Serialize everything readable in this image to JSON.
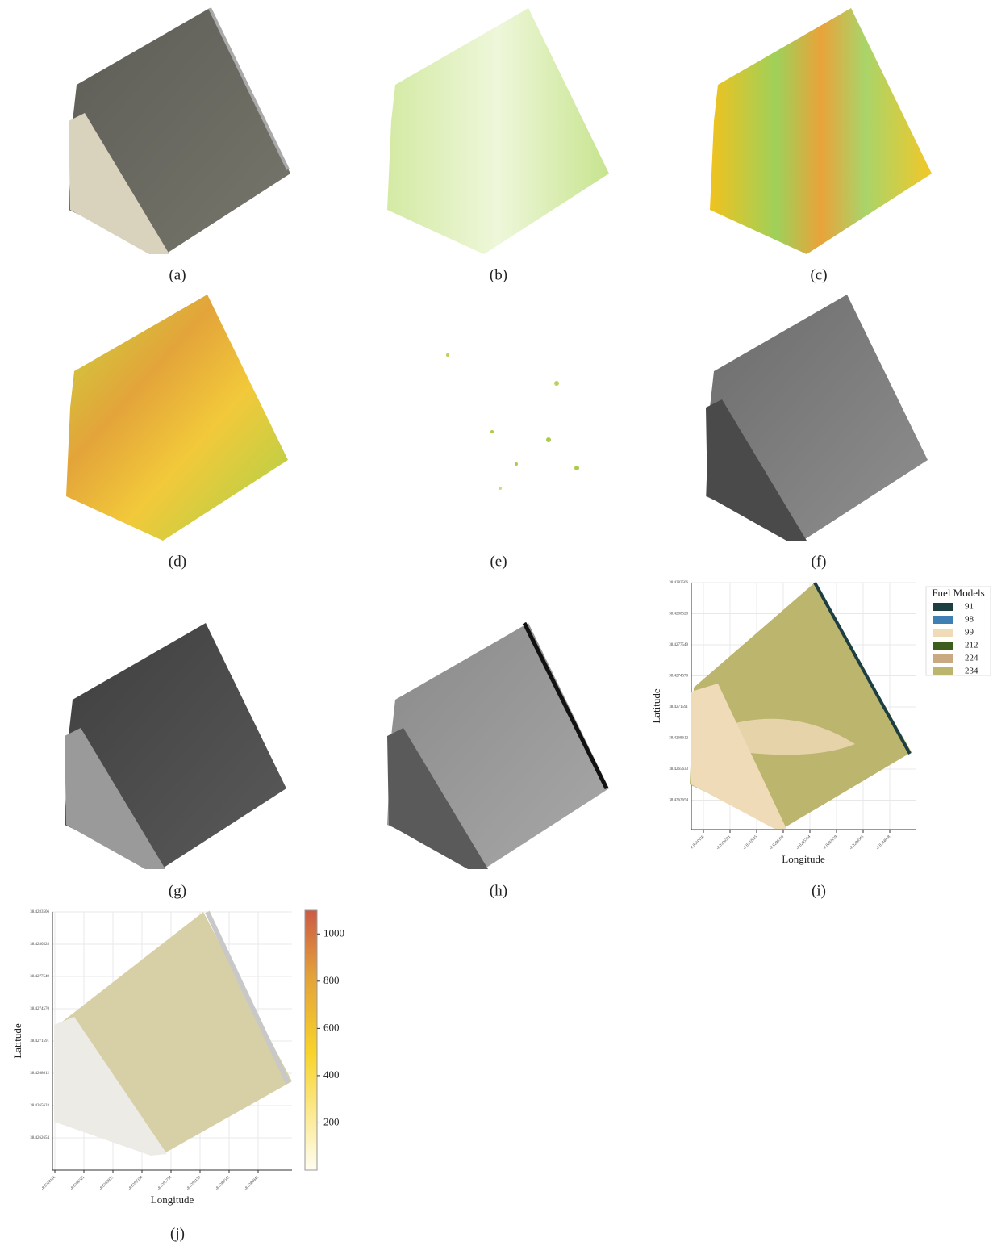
{
  "captions": [
    "(a)",
    "(b)",
    "(c)",
    "(d)",
    "(e)",
    "(f)",
    "(g)",
    "(h)",
    "(i)",
    "(j)"
  ],
  "fuel_map": {
    "legend_title": "Fuel Models",
    "legend": [
      {
        "label": "91",
        "color": "#1e3f42"
      },
      {
        "label": "98",
        "color": "#3f80b4"
      },
      {
        "label": "99",
        "color": "#f0dbb8"
      },
      {
        "label": "212",
        "color": "#3d5d1f"
      },
      {
        "label": "224",
        "color": "#c8a982"
      },
      {
        "label": "234",
        "color": "#bcb56e"
      }
    ],
    "xlabel": "Longitude",
    "ylabel": "Latitude",
    "xticks": [
      "-8.8310116",
      "-8.8306521",
      "-8.8302925",
      "-8.8299330",
      "-8.8295734",
      "-8.8292139",
      "-8.8288543",
      "-8.8284948"
    ],
    "yticks": [
      "38.4283506",
      "38.4280528",
      "38.4277549",
      "38.4274570",
      "38.4271591",
      "38.4268612",
      "38.4265633",
      "38.4262654"
    ]
  },
  "load_map": {
    "xlabel": "Longitude",
    "ylabel": "Latitude",
    "xticks": [
      "-8.8310116",
      "-8.8306521",
      "-8.8302925",
      "-8.8299330",
      "-8.8295734",
      "-8.8292139",
      "-8.8288543",
      "-8.8284948"
    ],
    "yticks": [
      "38.4283506",
      "38.4280528",
      "38.4277549",
      "38.4274570",
      "38.4271591",
      "38.4268612",
      "38.4265633",
      "38.4262654"
    ],
    "colorbar": {
      "lim": [
        0,
        1100
      ],
      "ticks": [
        200,
        400,
        600,
        800,
        1000
      ]
    }
  }
}
